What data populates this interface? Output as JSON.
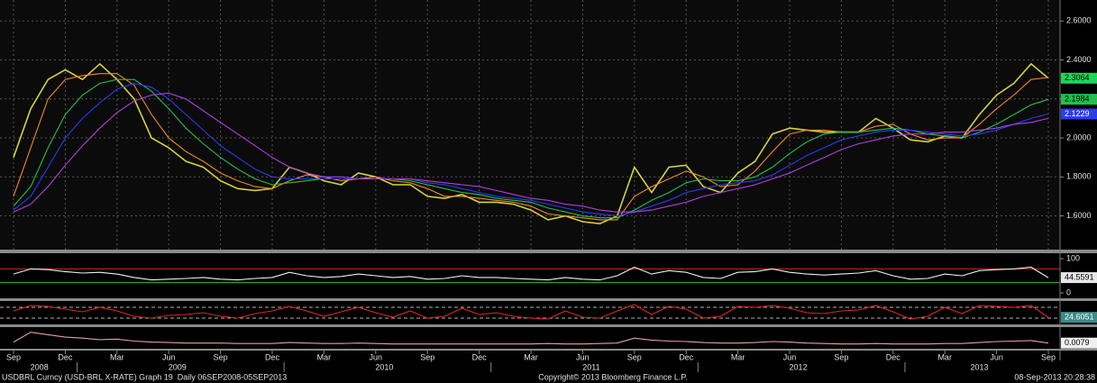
{
  "chart_data": [
    {
      "type": "line",
      "categories": [
        "Sep",
        null,
        null,
        "Dec",
        null,
        null,
        "Mar",
        null,
        null,
        "Jun",
        null,
        null,
        "Sep",
        null,
        null,
        "Dec",
        null,
        null,
        "Mar",
        null,
        null,
        "Jun",
        null,
        null,
        "Sep",
        null,
        null,
        "Dec",
        null,
        null,
        "Mar",
        null,
        null,
        "Jun",
        null,
        null,
        "Sep",
        null,
        null,
        "Dec",
        null,
        null,
        "Mar",
        null,
        null,
        "Jun",
        null,
        null,
        "Sep",
        null,
        null,
        "Dec",
        null,
        null,
        "Mar",
        null,
        null,
        "Jun",
        null,
        null,
        "Sep"
      ],
      "years": [
        "2008",
        "2009",
        "2010",
        "2011",
        "2012",
        "2013"
      ],
      "ylim": [
        1.45,
        2.68
      ],
      "yticks": [
        {
          "value": 1.6,
          "label": "1.6000"
        },
        {
          "value": 1.8,
          "label": "1.8000"
        },
        {
          "value": 2.0,
          "label": "2.0000"
        },
        {
          "value": 2.2,
          "label": "2.2000"
        },
        {
          "value": 2.4,
          "label": "2.4000"
        },
        {
          "value": 2.6,
          "label": "2.6000"
        }
      ],
      "grid": true,
      "series": [
        {
          "color": "#d6d23c",
          "label_last": true,
          "label_color": "#1fd35a",
          "values": [
            1.9,
            2.15,
            2.3,
            2.35,
            2.3,
            2.38,
            2.3,
            2.2,
            2.0,
            1.95,
            1.88,
            1.85,
            1.78,
            1.74,
            1.73,
            1.74,
            1.85,
            1.82,
            1.78,
            1.76,
            1.82,
            1.8,
            1.76,
            1.76,
            1.7,
            1.69,
            1.71,
            1.67,
            1.67,
            1.66,
            1.63,
            1.58,
            1.6,
            1.57,
            1.56,
            1.6,
            1.85,
            1.72,
            1.85,
            1.86,
            1.75,
            1.72,
            1.82,
            1.88,
            2.02,
            2.05,
            2.04,
            2.03,
            2.03,
            2.03,
            2.1,
            2.05,
            1.99,
            1.98,
            2.01,
            2.0,
            2.12,
            2.22,
            2.28,
            2.38,
            2.3064
          ]
        },
        {
          "color": "#f08a24",
          "values": [
            1.7,
            1.95,
            2.2,
            2.3,
            2.32,
            2.33,
            2.33,
            2.27,
            2.12,
            2.0,
            1.93,
            1.88,
            1.82,
            1.78,
            1.75,
            1.74,
            1.78,
            1.81,
            1.8,
            1.78,
            1.79,
            1.8,
            1.78,
            1.77,
            1.74,
            1.7,
            1.7,
            1.69,
            1.68,
            1.67,
            1.65,
            1.61,
            1.6,
            1.59,
            1.58,
            1.58,
            1.7,
            1.75,
            1.79,
            1.83,
            1.8,
            1.75,
            1.76,
            1.83,
            1.93,
            2.02,
            2.04,
            2.04,
            2.03,
            2.03,
            2.06,
            2.07,
            2.02,
            1.99,
            2.0,
            2.0,
            2.07,
            2.15,
            2.22,
            2.3,
            2.31
          ]
        },
        {
          "color": "#22c04a",
          "label_last": true,
          "label_color": "#22c04a",
          "values": [
            1.65,
            1.75,
            1.95,
            2.12,
            2.22,
            2.28,
            2.3,
            2.3,
            2.24,
            2.15,
            2.05,
            1.97,
            1.9,
            1.84,
            1.79,
            1.76,
            1.77,
            1.78,
            1.79,
            1.79,
            1.79,
            1.79,
            1.79,
            1.78,
            1.76,
            1.74,
            1.72,
            1.71,
            1.69,
            1.68,
            1.67,
            1.64,
            1.62,
            1.6,
            1.59,
            1.59,
            1.63,
            1.68,
            1.72,
            1.77,
            1.79,
            1.78,
            1.78,
            1.8,
            1.85,
            1.92,
            1.98,
            2.02,
            2.03,
            2.03,
            2.04,
            2.05,
            2.04,
            2.02,
            2.01,
            2.0,
            2.03,
            2.07,
            2.12,
            2.17,
            2.1984
          ]
        },
        {
          "color": "#2a3cf0",
          "label_last": true,
          "label_color": "#2a3cf0",
          "values": [
            1.63,
            1.7,
            1.85,
            2.0,
            2.1,
            2.18,
            2.25,
            2.28,
            2.26,
            2.2,
            2.12,
            2.04,
            1.96,
            1.9,
            1.84,
            1.8,
            1.79,
            1.79,
            1.79,
            1.79,
            1.79,
            1.79,
            1.79,
            1.79,
            1.77,
            1.76,
            1.74,
            1.72,
            1.7,
            1.69,
            1.68,
            1.66,
            1.64,
            1.62,
            1.61,
            1.6,
            1.62,
            1.65,
            1.68,
            1.72,
            1.74,
            1.76,
            1.77,
            1.78,
            1.81,
            1.86,
            1.91,
            1.95,
            1.99,
            2.01,
            2.03,
            2.04,
            2.04,
            2.03,
            2.02,
            2.01,
            2.02,
            2.04,
            2.07,
            2.1,
            2.1229
          ]
        },
        {
          "color": "#b040e0",
          "values": [
            1.62,
            1.66,
            1.75,
            1.86,
            1.96,
            2.05,
            2.13,
            2.19,
            2.22,
            2.23,
            2.2,
            2.14,
            2.08,
            2.02,
            1.96,
            1.9,
            1.85,
            1.82,
            1.8,
            1.8,
            1.79,
            1.79,
            1.79,
            1.79,
            1.78,
            1.77,
            1.76,
            1.75,
            1.73,
            1.71,
            1.69,
            1.68,
            1.66,
            1.65,
            1.63,
            1.62,
            1.62,
            1.63,
            1.65,
            1.67,
            1.7,
            1.72,
            1.74,
            1.76,
            1.79,
            1.82,
            1.86,
            1.9,
            1.94,
            1.97,
            1.99,
            2.01,
            2.02,
            2.02,
            2.03,
            2.03,
            2.04,
            2.05,
            2.07,
            2.08,
            2.1
          ]
        }
      ]
    },
    {
      "type": "line",
      "ylim": [
        0,
        100
      ],
      "yticks": [
        0,
        100
      ],
      "levels": [
        {
          "value": 70,
          "color": "#e02020"
        },
        {
          "value": 30,
          "color": "#20c020"
        }
      ],
      "series": [
        {
          "color": "#f0f0f0",
          "label_last": true,
          "label_color": "#e8e8e8",
          "values": [
            55,
            70,
            68,
            62,
            58,
            60,
            55,
            45,
            38,
            40,
            42,
            45,
            40,
            38,
            42,
            45,
            60,
            50,
            45,
            48,
            55,
            50,
            45,
            48,
            40,
            42,
            50,
            45,
            45,
            42,
            40,
            38,
            45,
            40,
            38,
            50,
            75,
            55,
            65,
            60,
            45,
            42,
            60,
            62,
            70,
            60,
            55,
            52,
            55,
            58,
            65,
            50,
            40,
            42,
            55,
            50,
            65,
            68,
            70,
            75,
            44.5591
          ]
        }
      ]
    },
    {
      "type": "line",
      "ylim": [
        0,
        100
      ],
      "levels": [
        {
          "value": 80,
          "color": "#b0b0b0"
        },
        {
          "value": 20,
          "color": "#b0b0b0"
        }
      ],
      "series": [
        {
          "color": "#e02424",
          "label_last": true,
          "label_color": "#3a8a86",
          "values": [
            60,
            90,
            85,
            70,
            55,
            80,
            60,
            30,
            20,
            35,
            40,
            50,
            30,
            20,
            45,
            60,
            85,
            60,
            30,
            55,
            80,
            50,
            25,
            60,
            20,
            30,
            75,
            40,
            50,
            30,
            20,
            15,
            60,
            25,
            20,
            60,
            95,
            40,
            85,
            70,
            20,
            30,
            85,
            80,
            90,
            75,
            50,
            45,
            60,
            65,
            90,
            55,
            15,
            30,
            80,
            45,
            90,
            85,
            80,
            90,
            24.6051
          ]
        }
      ]
    },
    {
      "type": "line",
      "ylim": [
        0,
        0.035
      ],
      "series": [
        {
          "color": "#e8a0a0",
          "label_last": true,
          "label_color": "#f0f0f0",
          "values": [
            0.01,
            0.03,
            0.025,
            0.02,
            0.018,
            0.015,
            0.016,
            0.012,
            0.01,
            0.009,
            0.008,
            0.008,
            0.008,
            0.007,
            0.007,
            0.007,
            0.009,
            0.008,
            0.007,
            0.007,
            0.008,
            0.007,
            0.006,
            0.006,
            0.006,
            0.006,
            0.006,
            0.006,
            0.006,
            0.006,
            0.006,
            0.007,
            0.006,
            0.006,
            0.007,
            0.008,
            0.018,
            0.014,
            0.012,
            0.011,
            0.009,
            0.008,
            0.008,
            0.009,
            0.011,
            0.01,
            0.008,
            0.007,
            0.006,
            0.006,
            0.007,
            0.006,
            0.006,
            0.006,
            0.007,
            0.007,
            0.009,
            0.011,
            0.012,
            0.013,
            0.0079
          ]
        }
      ]
    }
  ],
  "footer": {
    "left": "USDBRL Curncy (USD-BRL X-RATE) Graph 19  Daily 06SEP2008-05SEP2013",
    "center": "Copyright© 2013 Bloomberg Finance L.P.",
    "right": "08-Sep-2013 20:28:38"
  }
}
